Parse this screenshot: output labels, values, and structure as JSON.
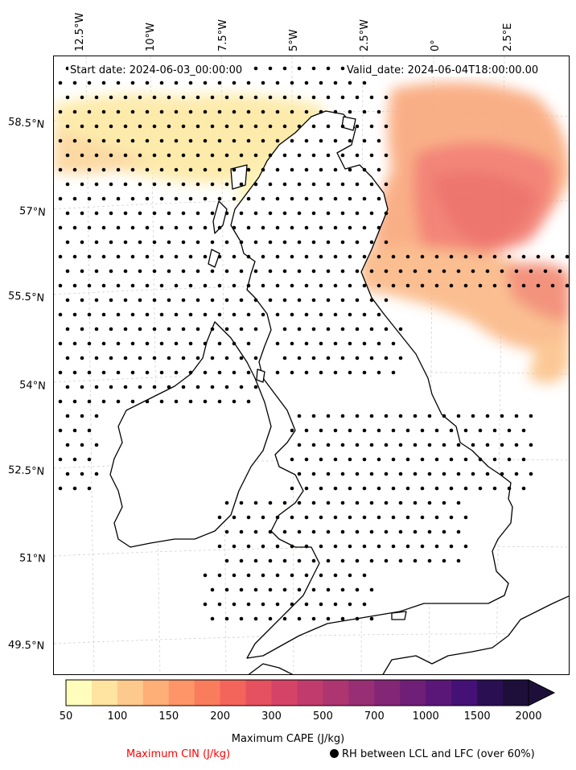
{
  "header": {
    "start_date": "Start date: 2024-06-03_00:00:00",
    "valid_date": "Valid_date: 2024-06-04T18:00:00.00"
  },
  "axes": {
    "lon_labels": [
      "12.5°W",
      "10°W",
      "7.5°W",
      "5°W",
      "2.5°W",
      "0°",
      "2.5°E"
    ],
    "lat_labels": [
      "58.5°N",
      "57°N",
      "55.5°N",
      "54°N",
      "52.5°N",
      "51°N",
      "49.5°N"
    ]
  },
  "colorbar": {
    "ticks": [
      "50",
      "100",
      "150",
      "200",
      "300",
      "500",
      "700",
      "1000",
      "1500",
      "2000"
    ],
    "colors": [
      "#fffdbb",
      "#fee3a1",
      "#fec98c",
      "#feae77",
      "#fd9568",
      "#f97c5d",
      "#f3645b",
      "#e6515f",
      "#d54466",
      "#c13b6c",
      "#ad3570",
      "#982e73",
      "#842676",
      "#6f1f78",
      "#5b1778",
      "#441176",
      "#2b0f53",
      "#1e0f3a"
    ],
    "label": "Maximum CAPE (J/kg)"
  },
  "legend": {
    "cin_label": "Maximum CIN (J/kg)",
    "rh_label": "RH between LCL and LFC (over 60%)"
  }
}
